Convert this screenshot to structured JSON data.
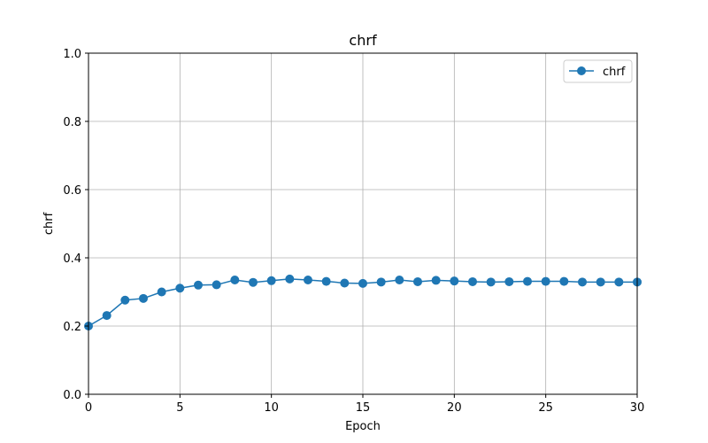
{
  "chart_data": {
    "type": "line",
    "title": "chrf",
    "xlabel": "Epoch",
    "ylabel": "chrf",
    "xlim": [
      0,
      30
    ],
    "ylim": [
      0,
      1.0
    ],
    "xticks": [
      0,
      5,
      10,
      15,
      20,
      25,
      30
    ],
    "yticks": [
      0.0,
      0.2,
      0.4,
      0.6,
      0.8,
      1.0
    ],
    "xtick_labels": [
      "0",
      "5",
      "10",
      "15",
      "20",
      "25",
      "30"
    ],
    "ytick_labels": [
      "0.0",
      "0.2",
      "0.4",
      "0.6",
      "0.8",
      "1.0"
    ],
    "grid": true,
    "legend_position": "top-right",
    "series": [
      {
        "name": "chrf",
        "color": "#1f77b4",
        "marker": "circle",
        "x": [
          0,
          1,
          2,
          3,
          4,
          5,
          6,
          7,
          8,
          9,
          10,
          11,
          12,
          13,
          14,
          15,
          16,
          17,
          18,
          19,
          20,
          21,
          22,
          23,
          24,
          25,
          26,
          27,
          28,
          29,
          30
        ],
        "y": [
          0.2,
          0.231,
          0.276,
          0.281,
          0.3,
          0.311,
          0.32,
          0.321,
          0.335,
          0.328,
          0.333,
          0.338,
          0.335,
          0.331,
          0.326,
          0.325,
          0.329,
          0.335,
          0.33,
          0.334,
          0.332,
          0.33,
          0.329,
          0.33,
          0.331,
          0.331,
          0.331,
          0.329,
          0.329,
          0.329,
          0.329
        ]
      }
    ]
  }
}
